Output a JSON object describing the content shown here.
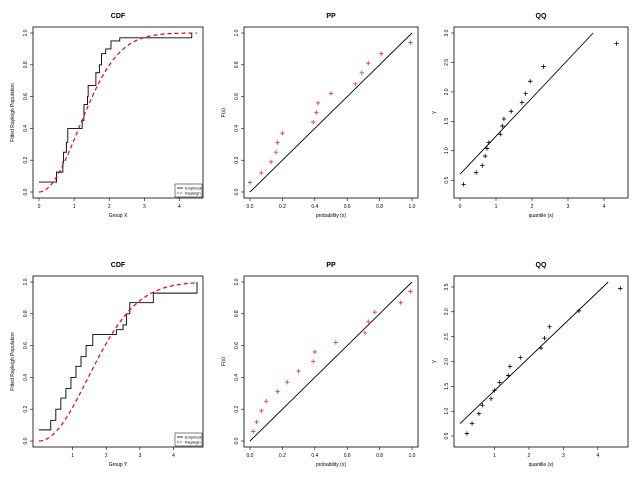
{
  "colors": {
    "empirical": "#000000",
    "fitted": "#ee0000",
    "points_red": "#ee3333",
    "points_black": "#000000"
  },
  "chart_data": [
    {
      "type": "line",
      "panel": "cdf",
      "title": "CDF",
      "xlabel": "Group X",
      "ylabel": "Fitted Rayleigh Population",
      "xlim": [
        0,
        4.5
      ],
      "ylim": [
        0,
        1
      ],
      "xticks": [
        "0",
        "1",
        "2",
        "3",
        "4"
      ],
      "yticks": [
        "0.0",
        "0.2",
        "0.4",
        "0.6",
        "0.8",
        "1.0"
      ],
      "legend": {
        "position": "bottom-right",
        "entries": [
          "Empirical",
          "Rayleigh"
        ]
      },
      "series": [
        {
          "name": "Empirical",
          "style": "step",
          "x": [
            0.3,
            0.5,
            0.68,
            0.7,
            0.78,
            0.82,
            1.23,
            1.28,
            1.38,
            1.4,
            1.62,
            1.72,
            1.78,
            1.9,
            2.05,
            2.3,
            4.35
          ],
          "y": [
            0.0625,
            0.125,
            0.1875,
            0.25,
            0.3125,
            0.4,
            0.45,
            0.55,
            0.6,
            0.67,
            0.75,
            0.8,
            0.87,
            0.9,
            0.95,
            0.97,
            1.0
          ]
        },
        {
          "name": "Rayleigh",
          "style": "curve",
          "scale": 1.12
        }
      ]
    },
    {
      "type": "scatter",
      "panel": "pp",
      "title": "PP",
      "xlabel": "probability (x)",
      "ylabel": "F(x)",
      "xlim": [
        0,
        1
      ],
      "ylim": [
        0,
        1
      ],
      "xticks": [
        "0.0",
        "0.2",
        "0.4",
        "0.6",
        "0.8",
        "1.0"
      ],
      "yticks": [
        "0.0",
        "0.2",
        "0.4",
        "0.6",
        "0.8",
        "1.0"
      ],
      "x": [
        0.0,
        0.07,
        0.13,
        0.16,
        0.17,
        0.2,
        0.39,
        0.41,
        0.42,
        0.5,
        0.65,
        0.69,
        0.73,
        0.81,
        0.99
      ],
      "y": [
        0.06,
        0.12,
        0.19,
        0.25,
        0.31,
        0.37,
        0.44,
        0.5,
        0.56,
        0.62,
        0.68,
        0.75,
        0.81,
        0.87,
        0.94
      ],
      "reference_line": [
        [
          0,
          0
        ],
        [
          1,
          1
        ]
      ]
    },
    {
      "type": "scatter",
      "panel": "qq",
      "title": "QQ",
      "xlabel": "quantile (x)",
      "ylabel": "y",
      "xlim": [
        0,
        4.5
      ],
      "ylim": [
        0.3,
        3.0
      ],
      "xticks": [
        "0",
        "1",
        "2",
        "3",
        "4"
      ],
      "yticks": [
        "0.5",
        "1.0",
        "1.5",
        "2.0",
        "2.5",
        "3.0"
      ],
      "x": [
        0.1,
        0.45,
        0.62,
        0.7,
        0.75,
        0.8,
        1.12,
        1.18,
        1.22,
        1.42,
        1.72,
        1.82,
        1.95,
        2.32,
        4.35
      ],
      "y": [
        0.43,
        0.63,
        0.75,
        0.91,
        1.04,
        1.14,
        1.28,
        1.42,
        1.54,
        1.67,
        1.82,
        1.97,
        2.18,
        2.43,
        2.82
      ],
      "reference_line": [
        [
          0,
          0.6
        ],
        [
          3.7,
          3.0
        ]
      ]
    },
    {
      "type": "line",
      "panel": "cdf",
      "title": "CDF",
      "xlabel": "Group Y",
      "ylabel": "Fitted Rayleigh Population",
      "xlim": [
        0,
        4.7
      ],
      "ylim": [
        0,
        1
      ],
      "xticks": [
        "1",
        "2",
        "3",
        "4"
      ],
      "yticks": [
        "0.0",
        "0.2",
        "0.4",
        "0.6",
        "0.8",
        "1.0"
      ],
      "legend": {
        "position": "bottom-right",
        "entries": [
          "Empirical",
          "Rayleigh"
        ]
      },
      "series": [
        {
          "name": "Empirical",
          "style": "step",
          "x": [
            0.2,
            0.35,
            0.5,
            0.65,
            0.8,
            0.95,
            1.1,
            1.25,
            1.4,
            1.6,
            2.3,
            2.5,
            2.6,
            2.7,
            3.4,
            4.7
          ],
          "y": [
            0.07,
            0.13,
            0.2,
            0.27,
            0.33,
            0.4,
            0.47,
            0.53,
            0.6,
            0.67,
            0.7,
            0.73,
            0.8,
            0.87,
            0.93,
            1.0
          ]
        },
        {
          "name": "Rayleigh",
          "style": "curve",
          "scale": 1.45
        }
      ]
    },
    {
      "type": "scatter",
      "panel": "pp",
      "title": "PP",
      "xlabel": "probability (x)",
      "ylabel": "F(x)",
      "xlim": [
        0,
        1
      ],
      "ylim": [
        0,
        1
      ],
      "xticks": [
        "0.0",
        "0.2",
        "0.4",
        "0.6",
        "0.8",
        "1.0"
      ],
      "yticks": [
        "0.0",
        "0.2",
        "0.4",
        "0.6",
        "0.8",
        "1.0"
      ],
      "x": [
        0.02,
        0.04,
        0.07,
        0.1,
        0.17,
        0.23,
        0.3,
        0.39,
        0.4,
        0.53,
        0.71,
        0.73,
        0.77,
        0.93,
        0.99
      ],
      "y": [
        0.06,
        0.12,
        0.19,
        0.25,
        0.31,
        0.37,
        0.44,
        0.5,
        0.56,
        0.62,
        0.68,
        0.75,
        0.81,
        0.87,
        0.94
      ],
      "reference_line": [
        [
          0,
          0
        ],
        [
          1,
          1
        ]
      ]
    },
    {
      "type": "scatter",
      "panel": "qq",
      "title": "QQ",
      "xlabel": "quantile (x)",
      "ylabel": "y",
      "xlim": [
        0,
        4.7
      ],
      "ylim": [
        0.4,
        3.6
      ],
      "xticks": [
        "1",
        "2",
        "3",
        "4"
      ],
      "yticks": [
        "0.5",
        "1.0",
        "1.5",
        "2.0",
        "2.5",
        "3.0",
        "3.5"
      ],
      "x": [
        0.2,
        0.35,
        0.55,
        0.65,
        0.9,
        1.0,
        1.15,
        1.4,
        1.45,
        1.75,
        2.35,
        2.45,
        2.6,
        3.45,
        4.65
      ],
      "y": [
        0.55,
        0.75,
        0.95,
        1.12,
        1.25,
        1.42,
        1.58,
        1.72,
        1.9,
        2.08,
        2.27,
        2.47,
        2.7,
        3.02,
        3.47
      ],
      "reference_line": [
        [
          0,
          0.75
        ],
        [
          4.3,
          3.6
        ]
      ]
    }
  ]
}
